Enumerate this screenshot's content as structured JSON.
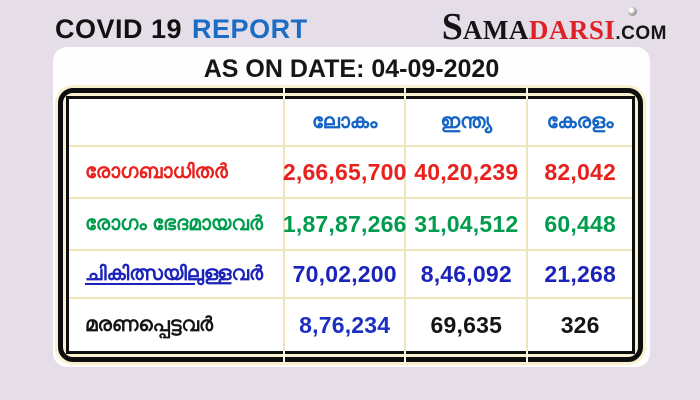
{
  "colors": {
    "background": "#e5dee8",
    "accent_blue": "#1a6cc4",
    "header_blue": "#1565c5",
    "logo_red": "#df2127",
    "logo_black": "#141414",
    "red": "#e8211d",
    "green": "#009c4e",
    "blue": "#1b23bb",
    "deep_blue": "#1b2fc0",
    "black": "#151515",
    "frame_cream": "#f9f0d0",
    "grid_line": "#efe5bd"
  },
  "header": {
    "title": "COVID 19",
    "title_accent": "REPORT"
  },
  "logo": {
    "s": "S",
    "ama": "AMA",
    "darsi": "DARSI",
    "com": ".COM"
  },
  "date_banner": "AS ON DATE: 04-09-2020",
  "chart_data": {
    "type": "table",
    "title": "COVID 19 REPORT",
    "subtitle": "AS ON DATE: 04-09-2020",
    "source_logo": "SAMADARSI.COM",
    "columns": [
      "",
      "ലോകം",
      "ഇന്ത്യ",
      "കേരളം"
    ],
    "rows": [
      {
        "label": "രോഗബാധിതർ",
        "color": "#e8211d",
        "values": [
          "2,66,65,700",
          "40,20,239",
          "82,042"
        ],
        "value_colors": [
          "#e8211d",
          "#e8211d",
          "#e8211d"
        ]
      },
      {
        "label": "രോഗം ഭേദമായവർ",
        "color": "#009c4e",
        "values": [
          "1,87,87,266",
          "31,04,512",
          "60,448"
        ],
        "value_colors": [
          "#009c4e",
          "#009c4e",
          "#009c4e"
        ]
      },
      {
        "label": "ചികിത്സയിലുള്ളവർ",
        "label_underlined": "ചികിത്സയിലുള്ള",
        "label_tail": "വർ",
        "color": "#1b23bb",
        "values": [
          "70,02,200",
          "8,46,092",
          "21,268"
        ],
        "value_colors": [
          "#1b23bb",
          "#1b23bb",
          "#1b23bb"
        ]
      },
      {
        "label": "മരണപ്പെട്ടവർ",
        "color": "#151515",
        "values": [
          "8,76,234",
          "69,635",
          "326"
        ],
        "value_colors": [
          "#1b2fc0",
          "#151515",
          "#151515"
        ]
      }
    ]
  }
}
